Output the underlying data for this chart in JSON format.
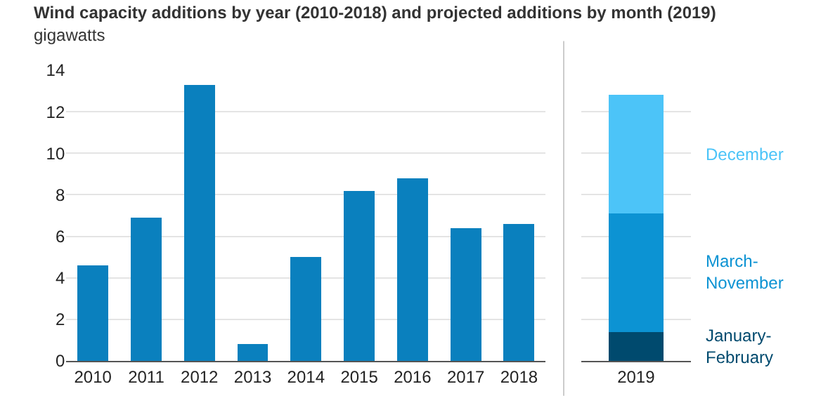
{
  "chart_data": [
    {
      "type": "bar",
      "title": "Wind capacity additions by year (2010-2018) and projected additions by month (2019)",
      "ylabel": "gigawatts",
      "categories": [
        "2010",
        "2011",
        "2012",
        "2013",
        "2014",
        "2015",
        "2016",
        "2017",
        "2018"
      ],
      "values": [
        4.6,
        6.9,
        13.3,
        0.8,
        5.0,
        8.2,
        8.8,
        6.4,
        6.6
      ],
      "color": "#0a80be",
      "ylim": [
        0,
        14
      ],
      "yticks": [
        0,
        2,
        4,
        6,
        8,
        10,
        12,
        14
      ],
      "grid": "y"
    },
    {
      "type": "bar",
      "stacked": true,
      "categories": [
        "2019"
      ],
      "series": [
        {
          "name": "January-\nFebruary",
          "color": "#004a6e",
          "values": [
            1.4
          ]
        },
        {
          "name": "March-\nNovember",
          "color": "#0c93d3",
          "values": [
            5.7
          ]
        },
        {
          "name": "December",
          "color": "#4cc4f8",
          "values": [
            5.7
          ]
        }
      ],
      "ylim": [
        0,
        14
      ],
      "yticks": [
        0,
        2,
        4,
        6,
        8,
        10,
        12,
        14
      ],
      "grid": "y",
      "tick_labels": "x"
    }
  ]
}
